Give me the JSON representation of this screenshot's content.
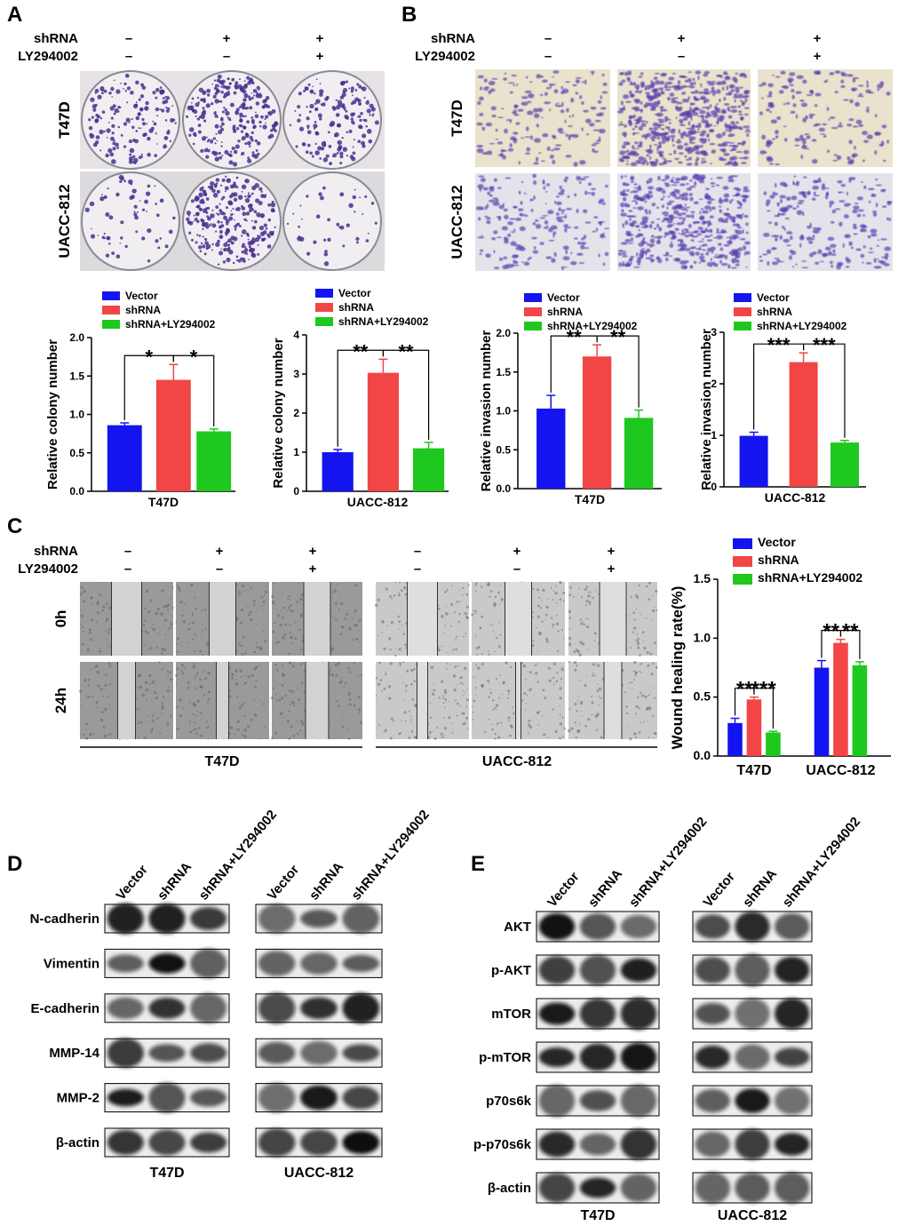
{
  "panel_labels": [
    "A",
    "B",
    "C",
    "D",
    "E"
  ],
  "a": {
    "conditions": [
      {
        "name": "shRNA",
        "signs": [
          "–",
          "+",
          "+"
        ]
      },
      {
        "name": "LY294002",
        "signs": [
          "–",
          "–",
          "+"
        ]
      }
    ],
    "rows": [
      "T47D",
      "UACC-812"
    ]
  },
  "b": {
    "conditions": [
      {
        "name": "shRNA",
        "signs": [
          "–",
          "+",
          "+"
        ]
      },
      {
        "name": "LY294002",
        "signs": [
          "–",
          "–",
          "+"
        ]
      }
    ],
    "rows": [
      "T47D",
      "UACC-812"
    ]
  },
  "c": {
    "conditions": [
      {
        "name": "shRNA",
        "signs": [
          "–",
          "+",
          "+",
          "–",
          "+",
          "+"
        ]
      },
      {
        "name": "LY294002",
        "signs": [
          "–",
          "–",
          "+",
          "–",
          "–",
          "+"
        ]
      }
    ],
    "rows": [
      "0h",
      "24h"
    ],
    "groups": [
      "T47D",
      "UACC-812"
    ]
  },
  "d": {
    "columns": [
      "Vector",
      "shRNA",
      "shRNA+LY294002"
    ],
    "rows": [
      "N-cadherin",
      "Vimentin",
      "E-cadherin",
      "MMP-14",
      "MMP-2",
      "β-actin"
    ],
    "cell_lines": [
      "T47D",
      "UACC-812"
    ]
  },
  "e": {
    "columns": [
      "Vector",
      "shRNA",
      "shRNA+LY294002"
    ],
    "rows": [
      "AKT",
      "p-AKT",
      "mTOR",
      "p-mTOR",
      "p70s6k",
      "p-p70s6k",
      "β-actin"
    ],
    "cell_lines": [
      "T47D",
      "UACC-812"
    ]
  },
  "chart_data": [
    {
      "type": "bar",
      "ylabel": "Relative colony number",
      "categories": [
        "T47D"
      ],
      "ylim": [
        0,
        2
      ],
      "yticks": [
        {
          "value": 0,
          "label": "0.0"
        },
        0.5,
        {
          "value": 1,
          "label": "1.0"
        },
        1.5,
        {
          "value": 2,
          "label": "2.0"
        }
      ],
      "series": [
        {
          "name": "Vector",
          "color": "#1414f0",
          "values": [
            0.86
          ],
          "errors": [
            0.03
          ]
        },
        {
          "name": "shRNA",
          "color": "#f24545",
          "values": [
            1.45
          ],
          "errors": [
            0.2
          ]
        },
        {
          "name": "shRNA+LY294002",
          "color": "#1ec81e",
          "values": [
            0.78
          ],
          "errors": [
            0.03
          ]
        }
      ],
      "significance": [
        [
          "*",
          "*"
        ]
      ]
    },
    {
      "type": "bar",
      "ylabel": "Relative colony number",
      "categories": [
        "UACC-812"
      ],
      "ylim": [
        0,
        4
      ],
      "yticks": [
        0,
        1,
        2,
        3,
        4
      ],
      "series": [
        {
          "name": "Vector",
          "color": "#1414f0",
          "values": [
            1.0
          ],
          "errors": [
            0.07
          ]
        },
        {
          "name": "shRNA",
          "color": "#f24545",
          "values": [
            3.03
          ],
          "errors": [
            0.35
          ]
        },
        {
          "name": "shRNA+LY294002",
          "color": "#1ec81e",
          "values": [
            1.1
          ],
          "errors": [
            0.15
          ]
        }
      ],
      "significance": [
        [
          "**",
          "**"
        ]
      ]
    },
    {
      "type": "bar",
      "ylabel": "Relative invasion number",
      "categories": [
        "T47D"
      ],
      "ylim": [
        0,
        2
      ],
      "yticks": [
        {
          "value": 0,
          "label": "0.0"
        },
        0.5,
        {
          "value": 1,
          "label": "1.0"
        },
        1.5,
        {
          "value": 2,
          "label": "2.0"
        }
      ],
      "series": [
        {
          "name": "Vector",
          "color": "#1414f0",
          "values": [
            1.03
          ],
          "errors": [
            0.17
          ]
        },
        {
          "name": "shRNA",
          "color": "#f24545",
          "values": [
            1.7
          ],
          "errors": [
            0.15
          ]
        },
        {
          "name": "shRNA+LY294002",
          "color": "#1ec81e",
          "values": [
            0.91
          ],
          "errors": [
            0.1
          ]
        }
      ],
      "significance": [
        [
          "**",
          "**"
        ]
      ]
    },
    {
      "type": "bar",
      "ylabel": "Relative invasion number",
      "categories": [
        "UACC-812"
      ],
      "ylim": [
        0,
        3
      ],
      "yticks": [
        0,
        1,
        2,
        3
      ],
      "series": [
        {
          "name": "Vector",
          "color": "#1414f0",
          "values": [
            0.99
          ],
          "errors": [
            0.07
          ]
        },
        {
          "name": "shRNA",
          "color": "#f24545",
          "values": [
            2.42
          ],
          "errors": [
            0.18
          ]
        },
        {
          "name": "shRNA+LY294002",
          "color": "#1ec81e",
          "values": [
            0.86
          ],
          "errors": [
            0.04
          ]
        }
      ],
      "significance": [
        [
          "***",
          "***"
        ]
      ]
    },
    {
      "type": "bar",
      "ylabel": "Wound healing rate(%)",
      "categories": [
        "T47D",
        "UACC-812"
      ],
      "ylim": [
        0,
        1.5
      ],
      "yticks": [
        {
          "value": 0,
          "label": "0.0"
        },
        0.5,
        {
          "value": 1,
          "label": "1.0"
        },
        1.5
      ],
      "series": [
        {
          "name": "Vector",
          "color": "#1414f0",
          "values": [
            0.28,
            0.75
          ],
          "errors": [
            0.04,
            0.06
          ]
        },
        {
          "name": "shRNA",
          "color": "#f24545",
          "values": [
            0.48,
            0.96
          ],
          "errors": [
            0.02,
            0.03
          ]
        },
        {
          "name": "shRNA+LY294002",
          "color": "#1ec81e",
          "values": [
            0.2,
            0.77
          ],
          "errors": [
            0.01,
            0.03
          ]
        }
      ],
      "significance": [
        [
          "**",
          "***"
        ],
        [
          "**",
          "**"
        ]
      ]
    }
  ]
}
